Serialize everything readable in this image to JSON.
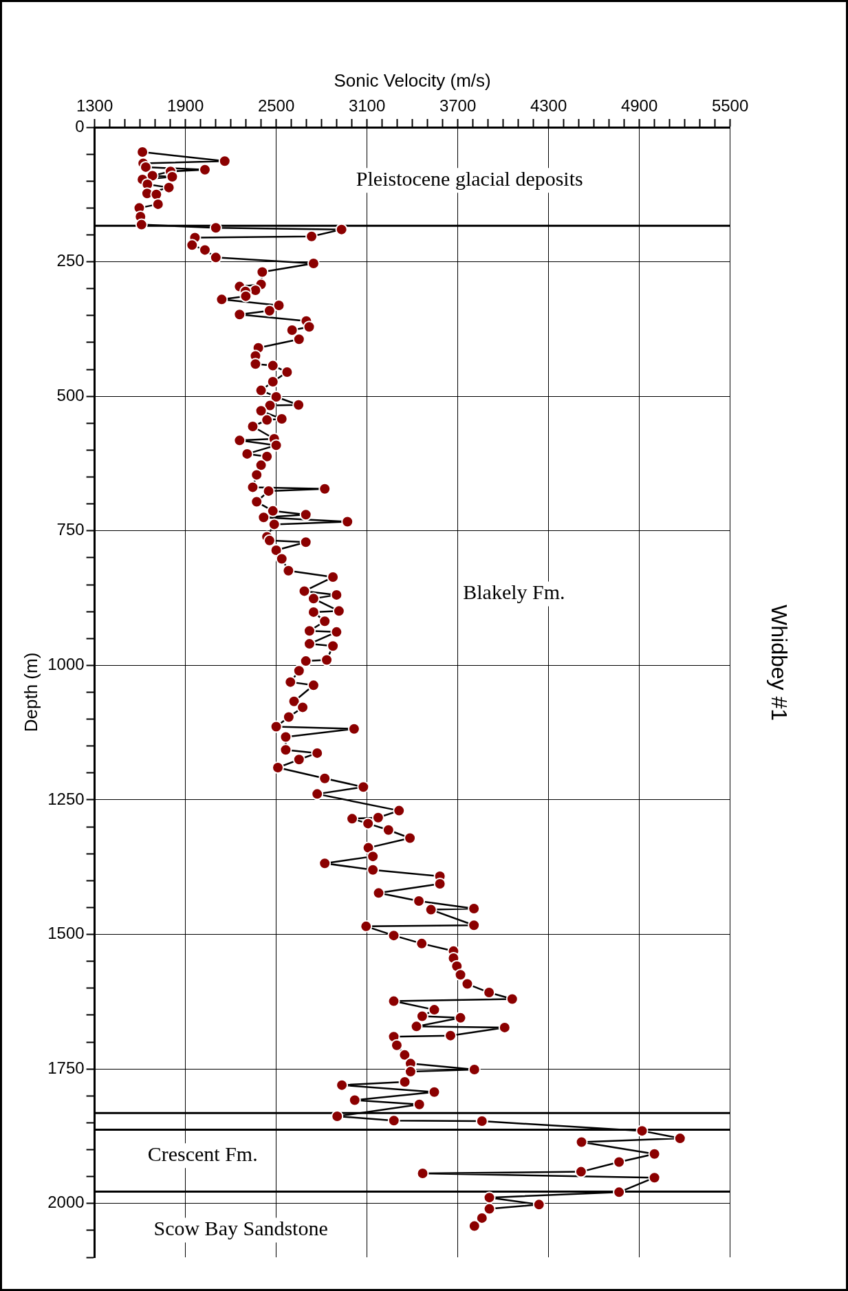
{
  "chart_data": {
    "type": "line",
    "title": "Whidbey #1",
    "xlabel": "Sonic Velocity (m/s)",
    "ylabel": "Depth (m)",
    "ylim": [
      2100,
      0
    ],
    "yticks": [
      0,
      {
        "value": 50,
        "label": null
      },
      {
        "value": 100,
        "label": null
      },
      {
        "value": 150,
        "label": null
      },
      {
        "value": 200,
        "label": null
      },
      250,
      {
        "value": 300,
        "label": null
      },
      {
        "value": 350,
        "label": null
      },
      {
        "value": 400,
        "label": null
      },
      {
        "value": 450,
        "label": null
      },
      500,
      {
        "value": 550,
        "label": null
      },
      {
        "value": 600,
        "label": null
      },
      {
        "value": 650,
        "label": null
      },
      {
        "value": 700,
        "label": null
      },
      750,
      {
        "value": 800,
        "label": null
      },
      {
        "value": 850,
        "label": null
      },
      {
        "value": 900,
        "label": null
      },
      {
        "value": 950,
        "label": null
      },
      1000,
      {
        "value": 1050,
        "label": null
      },
      {
        "value": 1100,
        "label": null
      },
      {
        "value": 1150,
        "label": null
      },
      {
        "value": 1200,
        "label": null
      },
      1250,
      {
        "value": 1300,
        "label": null
      },
      {
        "value": 1350,
        "label": null
      },
      {
        "value": 1400,
        "label": null
      },
      {
        "value": 1450,
        "label": null
      },
      1500,
      {
        "value": 1550,
        "label": null
      },
      {
        "value": 1600,
        "label": null
      },
      {
        "value": 1650,
        "label": null
      },
      {
        "value": 1700,
        "label": null
      },
      1750,
      {
        "value": 1800,
        "label": null
      },
      {
        "value": 1850,
        "label": null
      },
      {
        "value": 1900,
        "label": null
      },
      {
        "value": 1950,
        "label": null
      },
      2000,
      {
        "value": 2050,
        "label": null
      },
      {
        "value": 2100,
        "label": null
      }
    ],
    "xlim": [
      1300,
      5500
    ],
    "xticks": [
      1300,
      {
        "value": 1400,
        "label": null
      },
      {
        "value": 1500,
        "label": null
      },
      {
        "value": 1600,
        "label": null
      },
      {
        "value": 1700,
        "label": null
      },
      {
        "value": 1800,
        "label": null
      },
      1900,
      {
        "value": 2000,
        "label": null
      },
      {
        "value": 2100,
        "label": null
      },
      {
        "value": 2200,
        "label": null
      },
      {
        "value": 2300,
        "label": null
      },
      {
        "value": 2400,
        "label": null
      },
      2500,
      {
        "value": 2600,
        "label": null
      },
      {
        "value": 2700,
        "label": null
      },
      {
        "value": 2800,
        "label": null
      },
      {
        "value": 2900,
        "label": null
      },
      {
        "value": 3000,
        "label": null
      },
      3100,
      {
        "value": 3200,
        "label": null
      },
      {
        "value": 3300,
        "label": null
      },
      {
        "value": 3400,
        "label": null
      },
      {
        "value": 3500,
        "label": null
      },
      {
        "value": 3600,
        "label": null
      },
      3700,
      {
        "value": 3800,
        "label": null
      },
      {
        "value": 3900,
        "label": null
      },
      {
        "value": 4000,
        "label": null
      },
      {
        "value": 4100,
        "label": null
      },
      {
        "value": 4200,
        "label": null
      },
      4300,
      {
        "value": 4400,
        "label": null
      },
      {
        "value": 4500,
        "label": null
      },
      {
        "value": 4600,
        "label": null
      },
      {
        "value": 4700,
        "label": null
      },
      {
        "value": 4800,
        "label": null
      },
      4900,
      {
        "value": 5000,
        "label": null
      },
      {
        "value": 5100,
        "label": null
      },
      {
        "value": 5200,
        "label": null
      },
      {
        "value": 5300,
        "label": null
      },
      {
        "value": 5400,
        "label": null
      },
      5500
    ],
    "grid": true,
    "legend": false,
    "marker": "circle",
    "line_style": "solid",
    "x": [
      1616,
      2160,
      1621,
      1638,
      2029,
      1802,
      1682,
      1813,
      1616,
      1649,
      1791,
      1647,
      1708,
      1719,
      1595,
      1603,
      1610,
      2101,
      2932,
      2734,
      1963,
      1944,
      2029,
      2101,
      2747,
      2408,
      2400,
      2258,
      2363,
      2297,
      2299,
      2140,
      2518,
      2456,
      2258,
      2699,
      2718,
      2605,
      2651,
      2382,
      2363,
      2363,
      2478,
      2572,
      2478,
      2400,
      2500,
      2648,
      2459,
      2400,
      2537,
      2439,
      2345,
      2487,
      2258,
      2500,
      2308,
      2439,
      2400,
      2371,
      2345,
      2821,
      2450,
      2371,
      2478,
      2696,
      2417,
      2971,
      2487,
      2439,
      2456,
      2696,
      2500,
      2537,
      2581,
      2875,
      2686,
      2899,
      2747,
      2915,
      2747,
      2821,
      2720,
      2899,
      2720,
      2875,
      2834,
      2696,
      2651,
      2594,
      2747,
      2618,
      2675,
      2583,
      2500,
      3015,
      2563,
      2563,
      2771,
      2651,
      2511,
      2821,
      3076,
      2771,
      3312,
      3174,
      3002,
      3107,
      3242,
      3384,
      3109,
      3139,
      2821,
      3139,
      3582,
      3582,
      3177,
      3443,
      3807,
      3523,
      3807,
      3094,
      3277,
      3462,
      3672,
      3672,
      3694,
      3718,
      3763,
      3907,
      4060,
      3277,
      3545,
      3465,
      3718,
      3427,
      4010,
      3652,
      3277,
      3297,
      3349,
      3388,
      3810,
      3388,
      3350,
      2934,
      3545,
      3019,
      3446,
      2903,
      3278,
      3860,
      4918,
      5169,
      4518,
      5000,
      4766,
      4515,
      3468,
      5000,
      4766,
      3909,
      4237,
      3909,
      3860,
      3810
    ],
    "series": [
      {
        "color": "#8b0000",
        "values": [
          46,
          63,
          67,
          74,
          79,
          82,
          90,
          92,
          97,
          106,
          112,
          123,
          125,
          143,
          150,
          166,
          181,
          187,
          190,
          203,
          205,
          219,
          228,
          242,
          253,
          269,
          292,
          296,
          303,
          305,
          314,
          320,
          331,
          341,
          348,
          360,
          371,
          377,
          394,
          410,
          425,
          440,
          443,
          455,
          473,
          489,
          501,
          516,
          517,
          527,
          542,
          544,
          556,
          579,
          582,
          591,
          607,
          612,
          628,
          646,
          669,
          672,
          676,
          696,
          713,
          720,
          725,
          733,
          738,
          761,
          768,
          771,
          786,
          802,
          824,
          836,
          862,
          869,
          876,
          899,
          901,
          918,
          936,
          938,
          960,
          964,
          990,
          992,
          1010,
          1031,
          1037,
          1067,
          1078,
          1096,
          1114,
          1118,
          1133,
          1157,
          1163,
          1175,
          1190,
          1210,
          1226,
          1239,
          1270,
          1283,
          1285,
          1294,
          1306,
          1321,
          1339,
          1355,
          1368,
          1380,
          1392,
          1406,
          1423,
          1438,
          1452,
          1454,
          1483,
          1485,
          1502,
          1517,
          1531,
          1544,
          1559,
          1575,
          1592,
          1608,
          1620,
          1624,
          1640,
          1652,
          1655,
          1671,
          1673,
          1688,
          1690,
          1706,
          1724,
          1740,
          1751,
          1755,
          1774,
          1780,
          1793,
          1808,
          1816,
          1838,
          1846,
          1847,
          1865,
          1879,
          1886,
          1908,
          1923,
          1941,
          1944,
          1952,
          1979,
          1989,
          2002,
          2010,
          2027,
          2042
        ]
      }
    ],
    "ref_lines": [
      {
        "axis": "y",
        "value": 183
      },
      {
        "axis": "y",
        "value": 1832
      },
      {
        "axis": "y",
        "value": 1863
      },
      {
        "axis": "y",
        "value": 1978
      }
    ],
    "annotations": [
      "Pleistocene glacial deposits",
      "Blakely Fm.",
      "Crescent Fm.",
      "Scow Bay Sandstone"
    ]
  }
}
